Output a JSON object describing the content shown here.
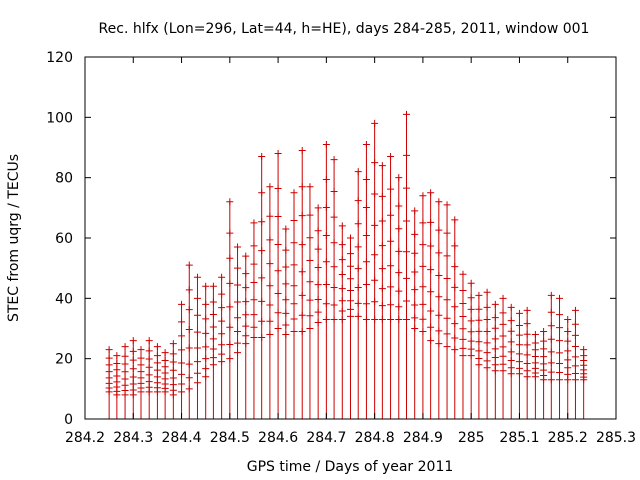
{
  "chart_data": {
    "type": "scatter",
    "title": "Rec. hlfx (Lon=296, Lat=44, h=HE), days 284-285, 2011, window 001",
    "xlabel": "GPS time / Days of year 2011",
    "ylabel": "STEC from uqrg / TECUs",
    "xlim": [
      284.2,
      285.3
    ],
    "ylim": [
      0,
      120
    ],
    "x_ticks": [
      284.2,
      284.3,
      284.4,
      284.5,
      284.6,
      284.7,
      284.8,
      284.9,
      285.0,
      285.1,
      285.2,
      285.3
    ],
    "x_tick_labels": [
      "284.2",
      "284.3",
      "284.4",
      "284.5",
      "284.6",
      "284.7",
      "284.8",
      "284.9",
      "285",
      "285.1",
      "285.2",
      "285.3"
    ],
    "y_ticks": [
      0,
      20,
      40,
      60,
      80,
      100,
      120
    ],
    "y_tick_labels": [
      "0",
      "20",
      "40",
      "60",
      "80",
      "100",
      "120"
    ],
    "grid": false,
    "legend": "none",
    "marker": "plus with vertical drop line to zero",
    "color": "#cc0000",
    "series": [
      {
        "x": [
          284.25,
          284.266,
          284.283,
          284.3,
          284.316,
          284.333,
          284.35,
          284.366,
          284.383,
          284.4,
          284.416,
          284.433,
          284.45,
          284.466,
          284.483,
          284.5,
          284.516,
          284.533,
          284.55,
          284.566,
          284.583,
          284.6,
          284.616,
          284.633,
          284.65,
          284.666,
          284.683,
          284.7,
          284.716,
          284.733,
          284.75,
          284.766,
          284.783,
          284.8,
          284.816,
          284.833,
          284.85,
          284.866,
          284.883,
          284.9,
          284.916,
          284.933,
          284.95,
          284.966,
          284.983,
          285.0,
          285.016,
          285.033,
          285.05,
          285.066,
          285.083,
          285.1,
          285.116,
          285.133,
          285.15,
          285.166,
          285.183,
          285.2,
          285.216,
          285.233
        ],
        "y_max": [
          23,
          21,
          24,
          26,
          23,
          26,
          24,
          22,
          25,
          38,
          51,
          47,
          44,
          44,
          47,
          72,
          57,
          54,
          65,
          87,
          77,
          88,
          63,
          75,
          89,
          77,
          70,
          91,
          86,
          64,
          60,
          82,
          91,
          98,
          84,
          87,
          80,
          101,
          69,
          74,
          75,
          72,
          71,
          66,
          48,
          45,
          41,
          42,
          38,
          40,
          37,
          35,
          36,
          28,
          29,
          41,
          40,
          33,
          36,
          23
        ],
        "y_min": [
          9,
          8,
          8,
          8,
          9,
          9,
          9,
          9,
          8,
          9,
          10,
          12,
          14,
          18,
          19,
          20,
          22,
          25,
          27,
          27,
          28,
          30,
          28,
          29,
          29,
          30,
          32,
          33,
          33,
          33,
          34,
          34,
          33,
          33,
          33,
          33,
          33,
          33,
          30,
          29,
          26,
          25,
          24,
          23,
          21,
          21,
          18,
          17,
          16,
          16,
          15,
          15,
          14,
          14,
          13,
          13,
          13,
          13,
          13,
          13
        ]
      }
    ]
  }
}
